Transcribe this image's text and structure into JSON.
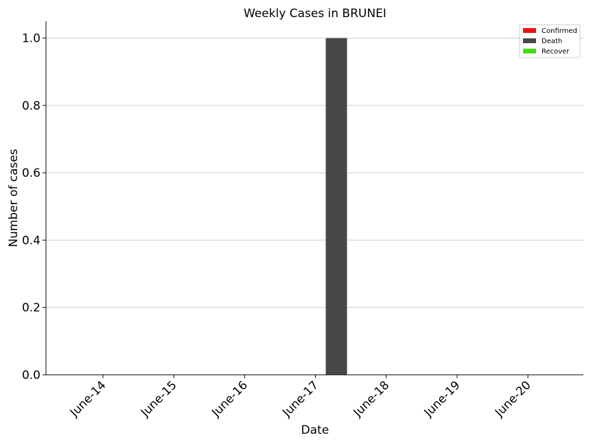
{
  "chart_data": {
    "type": "bar",
    "title": "Weekly Cases in BRUNEI",
    "xlabel": "Date",
    "ylabel": "Number of cases",
    "categories": [
      "June-14",
      "June-15",
      "June-16",
      "June-17",
      "June-18",
      "June-19",
      "June-20"
    ],
    "series": [
      {
        "name": "Confirmed",
        "color": "#ee1111",
        "values": [
          0,
          0,
          0,
          0,
          0,
          0,
          0
        ]
      },
      {
        "name": "Death",
        "color": "#484848",
        "values": [
          0,
          0,
          0,
          1,
          0,
          0,
          0
        ]
      },
      {
        "name": "Recover",
        "color": "#44dd11",
        "values": [
          0,
          0,
          0,
          0,
          0,
          0,
          0
        ]
      }
    ],
    "ylim": [
      0,
      1.05
    ],
    "yticks": [
      "0.0",
      "0.2",
      "0.4",
      "0.6",
      "0.8",
      "1.0"
    ],
    "grid": "horizontal",
    "legend_position": "top-right"
  }
}
